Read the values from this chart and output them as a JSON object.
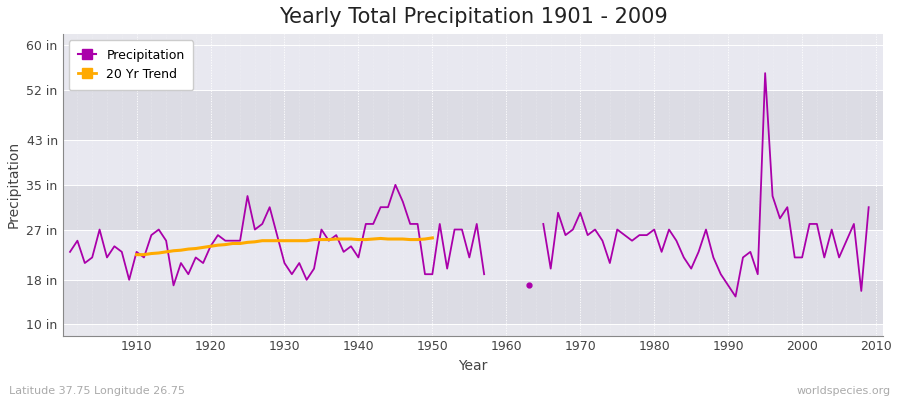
{
  "title": "Yearly Total Precipitation 1901 - 2009",
  "xlabel": "Year",
  "ylabel": "Precipitation",
  "fig_bg_color": "#ffffff",
  "plot_bg_color": "#e8e8ee",
  "band_color_light": "#e0e0e8",
  "band_color_dark": "#d8d8e0",
  "precip_color": "#aa00aa",
  "trend_color": "#ffaa00",
  "bottom_left_label": "Latitude 37.75 Longitude 26.75",
  "bottom_right_label": "worldspecies.org",
  "ytick_vals": [
    10,
    18,
    27,
    35,
    43,
    52,
    60
  ],
  "ytick_labels": [
    "10 in",
    "18 in",
    "27 in",
    "35 in",
    "43 in",
    "52 in",
    "60 in"
  ],
  "ylim": [
    8,
    62
  ],
  "xlim": [
    1900,
    2011
  ],
  "years_seg1": [
    1901,
    1902,
    1903,
    1904,
    1905,
    1906,
    1907,
    1908,
    1909,
    1910,
    1911,
    1912,
    1913,
    1914,
    1915,
    1916,
    1917,
    1918,
    1919,
    1920,
    1921,
    1922,
    1923,
    1924,
    1925,
    1926,
    1927,
    1928,
    1929,
    1930,
    1931,
    1932,
    1933,
    1934,
    1935,
    1936,
    1937,
    1938,
    1939,
    1940,
    1941,
    1942,
    1943,
    1944,
    1945,
    1946,
    1947,
    1948,
    1949,
    1950,
    1951,
    1952,
    1953,
    1954,
    1955,
    1956,
    1957
  ],
  "precip_seg1": [
    23,
    25,
    21,
    22,
    27,
    22,
    24,
    23,
    18,
    23,
    22,
    26,
    27,
    25,
    17,
    21,
    19,
    22,
    21,
    24,
    26,
    25,
    25,
    25,
    33,
    27,
    28,
    31,
    26,
    21,
    19,
    21,
    18,
    20,
    27,
    25,
    26,
    23,
    24,
    22,
    28,
    28,
    31,
    31,
    35,
    32,
    28,
    28,
    19,
    19,
    28,
    20,
    27,
    27,
    22,
    28,
    19
  ],
  "years_dot": [
    1963
  ],
  "precip_dot": [
    17
  ],
  "years_seg2": [
    1965,
    1966,
    1967,
    1968,
    1969,
    1970,
    1971,
    1972,
    1973,
    1974,
    1975,
    1976,
    1977,
    1978,
    1979,
    1980,
    1981,
    1982,
    1983,
    1984,
    1985,
    1986,
    1987,
    1988,
    1989,
    1990,
    1991,
    1992,
    1993,
    1994,
    1995,
    1996,
    1997,
    1998,
    1999,
    2000,
    2001,
    2002,
    2003,
    2004,
    2005,
    2006,
    2007,
    2008,
    2009
  ],
  "precip_seg2": [
    28,
    20,
    30,
    26,
    27,
    30,
    26,
    27,
    25,
    21,
    27,
    26,
    25,
    26,
    26,
    27,
    23,
    27,
    25,
    22,
    20,
    23,
    27,
    22,
    19,
    17,
    15,
    22,
    23,
    19,
    55,
    33,
    29,
    31,
    22,
    22,
    28,
    28,
    22,
    27,
    22,
    25,
    28,
    16,
    31
  ],
  "trend_years": [
    1910,
    1911,
    1912,
    1913,
    1914,
    1915,
    1916,
    1917,
    1918,
    1919,
    1920,
    1921,
    1922,
    1923,
    1924,
    1925,
    1926,
    1927,
    1928,
    1929,
    1930,
    1931,
    1932,
    1933,
    1934,
    1935,
    1936,
    1937,
    1938,
    1939,
    1940,
    1941,
    1942,
    1943,
    1944,
    1945,
    1946,
    1947,
    1948,
    1949,
    1950
  ],
  "trend": [
    22.5,
    22.5,
    22.7,
    22.8,
    23.0,
    23.2,
    23.3,
    23.5,
    23.6,
    23.8,
    24.0,
    24.2,
    24.3,
    24.5,
    24.5,
    24.7,
    24.8,
    25.0,
    25.0,
    25.0,
    25.0,
    25.0,
    25.0,
    25.0,
    25.2,
    25.2,
    25.2,
    25.3,
    25.3,
    25.3,
    25.2,
    25.2,
    25.3,
    25.4,
    25.3,
    25.3,
    25.3,
    25.2,
    25.2,
    25.3,
    25.5
  ],
  "grid_color": "#ffffff",
  "axis_color": "#888888",
  "label_color": "#444444",
  "annot_color": "#aaaaaa",
  "title_fontsize": 15,
  "tick_fontsize": 9,
  "label_fontsize": 10,
  "legend_fontsize": 9
}
